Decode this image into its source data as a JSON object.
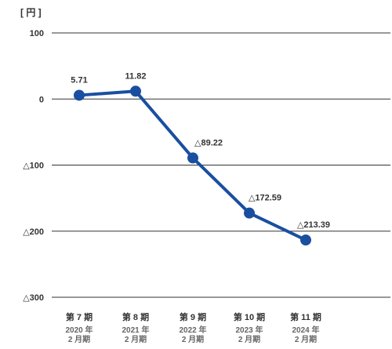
{
  "chart_data": {
    "type": "line",
    "unit_label": "[ 円 ]",
    "title": "",
    "xlabel": "",
    "ylabel": "",
    "ylim": [
      -300,
      100
    ],
    "y_ticks": [
      {
        "value": 100,
        "label": "100"
      },
      {
        "value": 0,
        "label": "0"
      },
      {
        "value": -100,
        "label": "△100"
      },
      {
        "value": -200,
        "label": "△200"
      },
      {
        "value": -300,
        "label": "△300"
      }
    ],
    "grid": true,
    "legend": "none",
    "colors": {
      "line": "#1a4fa0",
      "grid": "#333333",
      "text": "#333333",
      "subtext": "#666666"
    },
    "categories": [
      {
        "period": "第 7 期",
        "year": "2020 年",
        "month": "2 月期"
      },
      {
        "period": "第 8 期",
        "year": "2021 年",
        "month": "2 月期"
      },
      {
        "period": "第 9 期",
        "year": "2022 年",
        "month": "2 月期"
      },
      {
        "period": "第 10 期",
        "year": "2023 年",
        "month": "2 月期"
      },
      {
        "period": "第 11 期",
        "year": "2024 年",
        "month": "2 月期"
      }
    ],
    "series": [
      {
        "values": [
          5.71,
          11.82,
          -89.22,
          -172.59,
          -213.39
        ],
        "data_labels": [
          "5.71",
          "11.82",
          "△89.22",
          "△172.59",
          "△213.39"
        ]
      }
    ]
  }
}
